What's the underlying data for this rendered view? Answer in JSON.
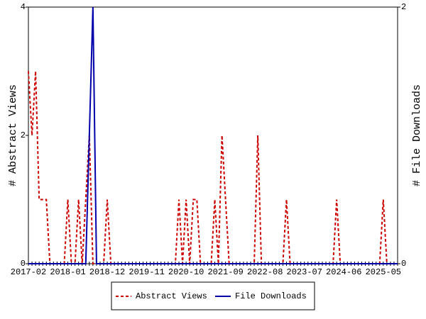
{
  "chart_data": {
    "type": "line",
    "x": [
      "2017-02",
      "2017-03",
      "2017-04",
      "2017-05",
      "2017-06",
      "2017-07",
      "2017-08",
      "2017-09",
      "2017-10",
      "2017-11",
      "2017-12",
      "2018-01",
      "2018-02",
      "2018-03",
      "2018-04",
      "2018-05",
      "2018-06",
      "2018-07",
      "2018-08",
      "2018-09",
      "2018-10",
      "2018-11",
      "2018-12",
      "2019-01",
      "2019-02",
      "2019-03",
      "2019-04",
      "2019-05",
      "2019-06",
      "2019-07",
      "2019-08",
      "2019-09",
      "2019-10",
      "2019-11",
      "2019-12",
      "2020-01",
      "2020-02",
      "2020-03",
      "2020-04",
      "2020-05",
      "2020-06",
      "2020-07",
      "2020-08",
      "2020-09",
      "2020-10",
      "2020-11",
      "2020-12",
      "2021-01",
      "2021-02",
      "2021-03",
      "2021-04",
      "2021-05",
      "2021-06",
      "2021-07",
      "2021-08",
      "2021-09",
      "2021-10",
      "2021-11",
      "2021-12",
      "2022-01",
      "2022-02",
      "2022-03",
      "2022-04",
      "2022-05",
      "2022-06",
      "2022-07",
      "2022-08",
      "2022-09",
      "2022-10",
      "2022-11",
      "2022-12",
      "2023-01",
      "2023-02",
      "2023-03",
      "2023-04",
      "2023-05",
      "2023-06",
      "2023-07",
      "2023-08",
      "2023-09",
      "2023-10",
      "2023-11",
      "2023-12",
      "2024-01",
      "2024-02",
      "2024-03",
      "2024-04",
      "2024-05",
      "2024-06",
      "2024-07",
      "2024-08",
      "2024-09",
      "2024-10",
      "2024-11",
      "2024-12",
      "2025-01",
      "2025-02",
      "2025-03",
      "2025-04",
      "2025-05",
      "2025-06",
      "2025-07",
      "2025-08",
      "2025-09"
    ],
    "y_label": "# Abstract Views",
    "y2_label": "# File Downloads",
    "ylim": [
      0,
      4
    ],
    "yticks": [
      0,
      2,
      4
    ],
    "y2lim": [
      0,
      2
    ],
    "y2ticks": [
      0,
      2
    ],
    "series": [
      {
        "name": "Abstract Views",
        "color": "#cc0000",
        "dashed": true,
        "values": [
          3,
          2,
          3,
          1,
          1,
          1,
          0,
          0,
          0,
          0,
          0,
          1,
          0,
          0,
          1,
          0,
          1,
          2,
          0,
          0,
          0,
          0,
          1,
          0,
          0,
          0,
          0,
          0,
          0,
          0,
          0,
          0,
          0,
          0,
          0,
          0,
          0,
          0,
          0,
          0,
          0,
          0,
          1,
          0,
          1,
          0,
          1,
          1,
          0,
          0,
          0,
          0,
          1,
          0,
          2,
          1,
          0,
          0,
          0,
          0,
          0,
          0,
          0,
          0,
          2,
          0,
          0,
          0,
          0,
          0,
          0,
          0,
          1,
          0,
          0,
          0,
          0,
          0,
          0,
          0,
          0,
          0,
          0,
          0,
          0,
          0,
          1,
          0,
          0,
          0,
          0,
          0,
          0,
          0,
          0,
          0,
          0,
          0,
          0,
          1,
          0,
          0,
          0,
          0
        ]
      },
      {
        "name": "File Downloads",
        "color": "#0000aa",
        "axis": "y2",
        "values": [
          0,
          0,
          0,
          0,
          0,
          0,
          0,
          0,
          0,
          0,
          0,
          0,
          0,
          0,
          0,
          0,
          0,
          1,
          2,
          0,
          0,
          0,
          0,
          0,
          0,
          0,
          0,
          0,
          0,
          0,
          0,
          0,
          0,
          0,
          0,
          0,
          0,
          0,
          0,
          0,
          0,
          0,
          0,
          0,
          0,
          0,
          0,
          0,
          0,
          0,
          0,
          0,
          0,
          0,
          0,
          0,
          0,
          0,
          0,
          0,
          0,
          0,
          0,
          0,
          0,
          0,
          0,
          0,
          0,
          0,
          0,
          0,
          0,
          0,
          0,
          0,
          0,
          0,
          0,
          0,
          0,
          0,
          0,
          0,
          0,
          0,
          0,
          0,
          0,
          0,
          0,
          0,
          0,
          0,
          0,
          0,
          0,
          0,
          0,
          0,
          0,
          0,
          0,
          0
        ]
      }
    ]
  }
}
